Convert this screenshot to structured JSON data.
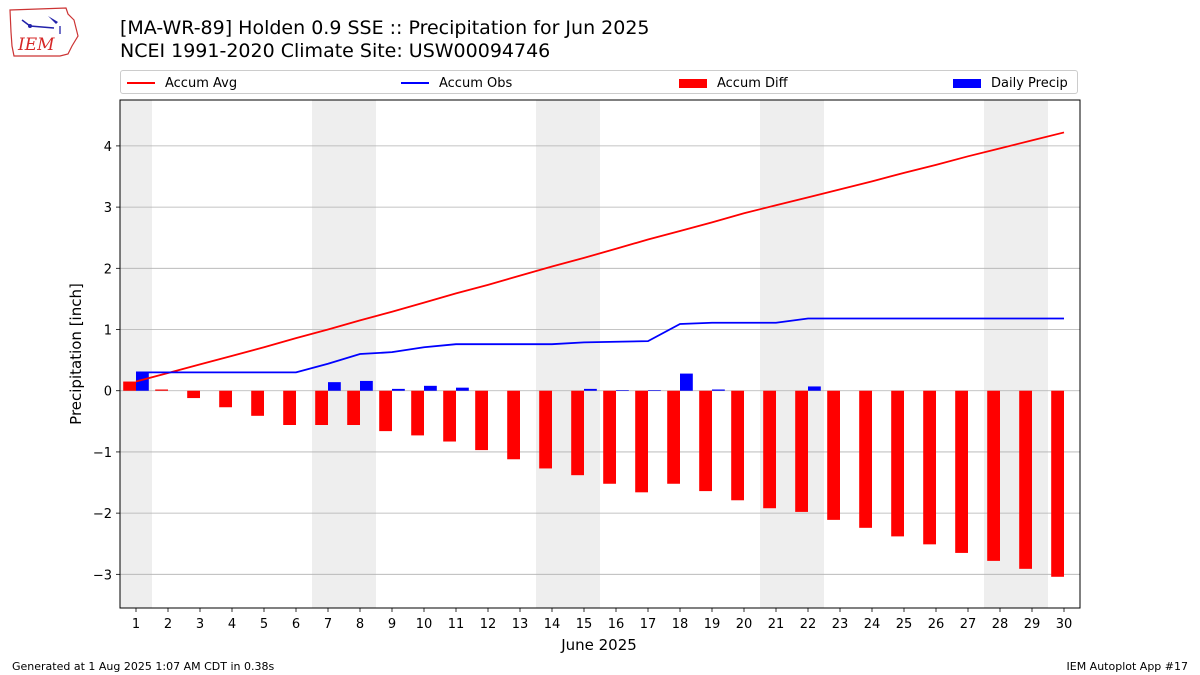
{
  "header": {
    "title": "[MA-WR-89] Holden 0.9 SSE :: Precipitation for Jun 2025",
    "subtitle": "NCEI 1991-2020 Climate Site: USW00094746"
  },
  "logo": {
    "text": "IEM"
  },
  "footer": {
    "left": "Generated at 1 Aug 2025 1:07 AM CDT in 0.38s",
    "right": "IEM Autoplot App #17"
  },
  "legend": {
    "accum_avg": "Accum Avg",
    "accum_obs": "Accum Obs",
    "accum_diff": "Accum Diff",
    "daily_precip": "Daily Precip"
  },
  "colors": {
    "accum_avg": "#ff0000",
    "accum_obs": "#0000ff",
    "accum_diff": "#ff0000",
    "daily_precip": "#0000ff",
    "weekend_band": "#eeeeee",
    "grid": "#b0b0b0"
  },
  "chart_data": {
    "type": "bar",
    "title": "[MA-WR-89] Holden 0.9 SSE :: Precipitation for Jun 2025",
    "subtitle": "NCEI 1991-2020 Climate Site: USW00094746",
    "xlabel": "June 2025",
    "ylabel": "Precipitation [inch]",
    "xlim": [
      0.5,
      30.5
    ],
    "ylim": [
      -3.55,
      4.75
    ],
    "yticks": [
      -3,
      -2,
      -1,
      0,
      1,
      2,
      3,
      4
    ],
    "ytick_labels": [
      "−3",
      "−2",
      "−1",
      "0",
      "1",
      "2",
      "3",
      "4"
    ],
    "x": [
      1,
      2,
      3,
      4,
      5,
      6,
      7,
      8,
      9,
      10,
      11,
      12,
      13,
      14,
      15,
      16,
      17,
      18,
      19,
      20,
      21,
      22,
      23,
      24,
      25,
      26,
      27,
      28,
      29,
      30
    ],
    "weekend_days": [
      1,
      7,
      8,
      14,
      15,
      21,
      22,
      28,
      29
    ],
    "grid": "horizontal",
    "legend_position": "top",
    "series": [
      {
        "name": "Accum Avg",
        "kind": "line",
        "values": [
          0.15,
          0.29,
          0.43,
          0.57,
          0.71,
          0.86,
          1.0,
          1.15,
          1.29,
          1.44,
          1.59,
          1.73,
          1.88,
          2.03,
          2.17,
          2.32,
          2.47,
          2.61,
          2.75,
          2.9,
          3.03,
          3.16,
          3.29,
          3.42,
          3.56,
          3.69,
          3.83,
          3.96,
          4.09,
          4.22
        ]
      },
      {
        "name": "Accum Obs",
        "kind": "line",
        "values": [
          0.3,
          0.3,
          0.3,
          0.3,
          0.3,
          0.3,
          0.44,
          0.6,
          0.63,
          0.71,
          0.76,
          0.76,
          0.76,
          0.76,
          0.79,
          0.8,
          0.81,
          1.09,
          1.11,
          1.11,
          1.11,
          1.18,
          1.18,
          1.18,
          1.18,
          1.18,
          1.18,
          1.18,
          1.18,
          1.18
        ]
      },
      {
        "name": "Accum Diff",
        "kind": "bar",
        "values": [
          0.15,
          0.02,
          -0.12,
          -0.27,
          -0.41,
          -0.56,
          -0.56,
          -0.56,
          -0.66,
          -0.73,
          -0.83,
          -0.97,
          -1.12,
          -1.27,
          -1.38,
          -1.52,
          -1.66,
          -1.52,
          -1.64,
          -1.79,
          -1.92,
          -1.98,
          -2.11,
          -2.24,
          -2.38,
          -2.51,
          -2.65,
          -2.78,
          -2.91,
          -3.04
        ]
      },
      {
        "name": "Daily Precip",
        "kind": "bar",
        "values": [
          0.3,
          0.0,
          0.0,
          0.0,
          0.0,
          0.0,
          0.14,
          0.16,
          0.03,
          0.08,
          0.05,
          0.0,
          0.0,
          0.0,
          0.03,
          0.01,
          0.01,
          0.28,
          0.02,
          0.0,
          0.0,
          0.07,
          0.0,
          0.0,
          0.0,
          0.0,
          0.0,
          0.0,
          0.0,
          0.0
        ]
      }
    ]
  }
}
